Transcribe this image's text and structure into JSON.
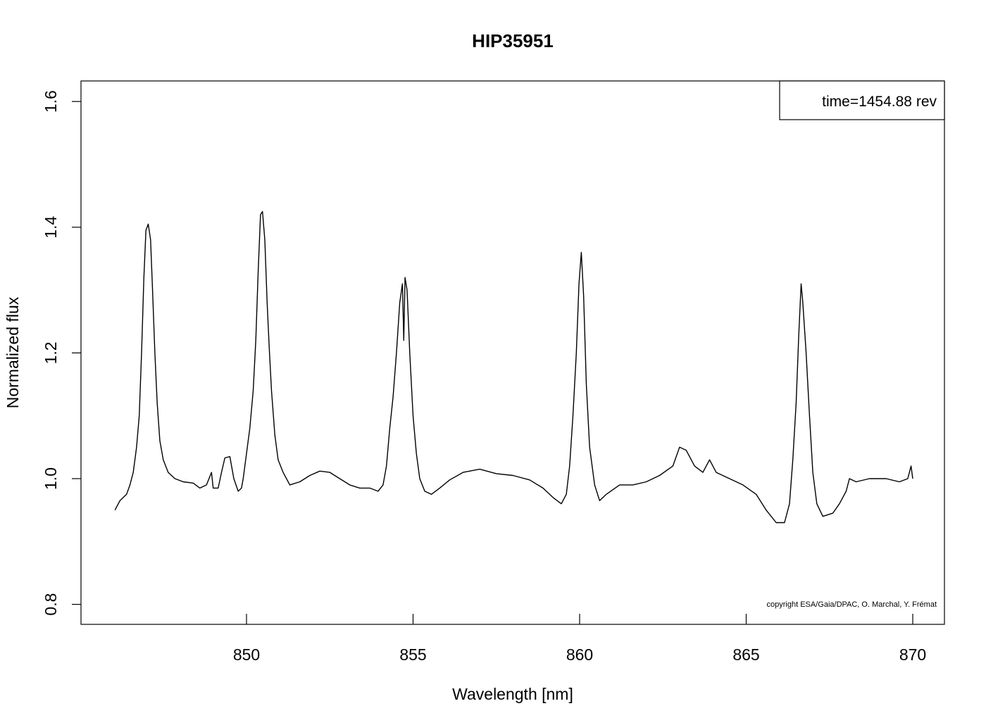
{
  "chart_data": {
    "type": "line",
    "title": "HIP35951",
    "xlabel": "Wavelength [nm]",
    "ylabel": "Normalized flux",
    "xlim": [
      845,
      870
    ],
    "ylim": [
      0.77,
      1.635
    ],
    "xticks": [
      850,
      855,
      860,
      865,
      870
    ],
    "xtick_labels": [
      "850",
      "855",
      "860",
      "865",
      "870"
    ],
    "yticks": [
      0.8,
      1.0,
      1.2,
      1.4,
      1.6
    ],
    "ytick_labels": [
      "0.8",
      "1.0",
      "1.2",
      "1.4",
      "1.6"
    ],
    "grid": false,
    "legend": {
      "position": "top-right",
      "text": "time=1454.88 rev"
    },
    "annotations": [
      {
        "text": "copyright ESA/Gaia/DPAC, O. Marchal, Y. Frémat",
        "position": "bottom-right"
      }
    ],
    "series": [
      {
        "color": "#000000",
        "points": [
          [
            846.05,
            0.95
          ],
          [
            846.2,
            0.965
          ],
          [
            846.4,
            0.975
          ],
          [
            846.5,
            0.99
          ],
          [
            846.6,
            1.01
          ],
          [
            846.7,
            1.05
          ],
          [
            846.78,
            1.1
          ],
          [
            846.85,
            1.2
          ],
          [
            846.92,
            1.32
          ],
          [
            846.98,
            1.395
          ],
          [
            847.05,
            1.405
          ],
          [
            847.12,
            1.38
          ],
          [
            847.18,
            1.3
          ],
          [
            847.25,
            1.2
          ],
          [
            847.32,
            1.12
          ],
          [
            847.4,
            1.06
          ],
          [
            847.5,
            1.03
          ],
          [
            847.65,
            1.01
          ],
          [
            847.85,
            1.0
          ],
          [
            848.1,
            0.995
          ],
          [
            848.4,
            0.993
          ],
          [
            848.6,
            0.985
          ],
          [
            848.8,
            0.99
          ],
          [
            848.95,
            1.01
          ],
          [
            849.0,
            0.985
          ],
          [
            849.15,
            0.985
          ],
          [
            849.25,
            1.01
          ],
          [
            849.35,
            1.033
          ],
          [
            849.5,
            1.035
          ],
          [
            849.62,
            1.0
          ],
          [
            849.75,
            0.98
          ],
          [
            849.85,
            0.985
          ],
          [
            849.9,
            1.0
          ],
          [
            850.0,
            1.04
          ],
          [
            850.1,
            1.08
          ],
          [
            850.2,
            1.14
          ],
          [
            850.28,
            1.22
          ],
          [
            850.35,
            1.33
          ],
          [
            850.42,
            1.42
          ],
          [
            850.48,
            1.425
          ],
          [
            850.55,
            1.38
          ],
          [
            850.62,
            1.28
          ],
          [
            850.68,
            1.21
          ],
          [
            850.75,
            1.14
          ],
          [
            850.85,
            1.07
          ],
          [
            850.95,
            1.03
          ],
          [
            851.1,
            1.01
          ],
          [
            851.3,
            0.99
          ],
          [
            851.6,
            0.995
          ],
          [
            851.9,
            1.005
          ],
          [
            852.2,
            1.012
          ],
          [
            852.5,
            1.01
          ],
          [
            852.8,
            1.0
          ],
          [
            853.1,
            0.99
          ],
          [
            853.4,
            0.985
          ],
          [
            853.7,
            0.985
          ],
          [
            853.95,
            0.98
          ],
          [
            854.1,
            0.99
          ],
          [
            854.2,
            1.02
          ],
          [
            854.3,
            1.08
          ],
          [
            854.4,
            1.13
          ],
          [
            854.5,
            1.2
          ],
          [
            854.6,
            1.28
          ],
          [
            854.68,
            1.31
          ],
          [
            854.72,
            1.22
          ],
          [
            854.76,
            1.32
          ],
          [
            854.82,
            1.3
          ],
          [
            854.9,
            1.2
          ],
          [
            855.0,
            1.1
          ],
          [
            855.1,
            1.04
          ],
          [
            855.2,
            1.0
          ],
          [
            855.35,
            0.98
          ],
          [
            855.55,
            0.975
          ],
          [
            855.8,
            0.985
          ],
          [
            856.1,
            0.998
          ],
          [
            856.5,
            1.01
          ],
          [
            857.0,
            1.015
          ],
          [
            857.5,
            1.008
          ],
          [
            858.0,
            1.005
          ],
          [
            858.5,
            0.998
          ],
          [
            858.9,
            0.985
          ],
          [
            859.2,
            0.97
          ],
          [
            859.45,
            0.96
          ],
          [
            859.6,
            0.975
          ],
          [
            859.7,
            1.02
          ],
          [
            859.8,
            1.1
          ],
          [
            859.9,
            1.2
          ],
          [
            859.98,
            1.31
          ],
          [
            860.05,
            1.36
          ],
          [
            860.12,
            1.29
          ],
          [
            860.2,
            1.15
          ],
          [
            860.3,
            1.05
          ],
          [
            860.45,
            0.99
          ],
          [
            860.6,
            0.965
          ],
          [
            860.8,
            0.975
          ],
          [
            861.2,
            0.99
          ],
          [
            861.6,
            0.99
          ],
          [
            862.0,
            0.995
          ],
          [
            862.4,
            1.005
          ],
          [
            862.8,
            1.02
          ],
          [
            863.0,
            1.05
          ],
          [
            863.2,
            1.045
          ],
          [
            863.45,
            1.02
          ],
          [
            863.7,
            1.01
          ],
          [
            863.9,
            1.03
          ],
          [
            864.1,
            1.01
          ],
          [
            864.5,
            1.0
          ],
          [
            864.9,
            0.99
          ],
          [
            865.3,
            0.975
          ],
          [
            865.6,
            0.95
          ],
          [
            865.9,
            0.93
          ],
          [
            866.15,
            0.93
          ],
          [
            866.3,
            0.96
          ],
          [
            866.4,
            1.03
          ],
          [
            866.5,
            1.12
          ],
          [
            866.58,
            1.23
          ],
          [
            866.65,
            1.31
          ],
          [
            866.7,
            1.28
          ],
          [
            866.8,
            1.2
          ],
          [
            866.9,
            1.1
          ],
          [
            867.0,
            1.01
          ],
          [
            867.12,
            0.96
          ],
          [
            867.3,
            0.94
          ],
          [
            867.6,
            0.945
          ],
          [
            867.8,
            0.96
          ],
          [
            868.0,
            0.98
          ],
          [
            868.1,
            1.0
          ],
          [
            868.3,
            0.995
          ],
          [
            868.7,
            1.0
          ],
          [
            869.2,
            1.0
          ],
          [
            869.6,
            0.995
          ],
          [
            869.85,
            1.0
          ],
          [
            869.95,
            1.02
          ],
          [
            870.0,
            1.0
          ]
        ]
      }
    ]
  }
}
